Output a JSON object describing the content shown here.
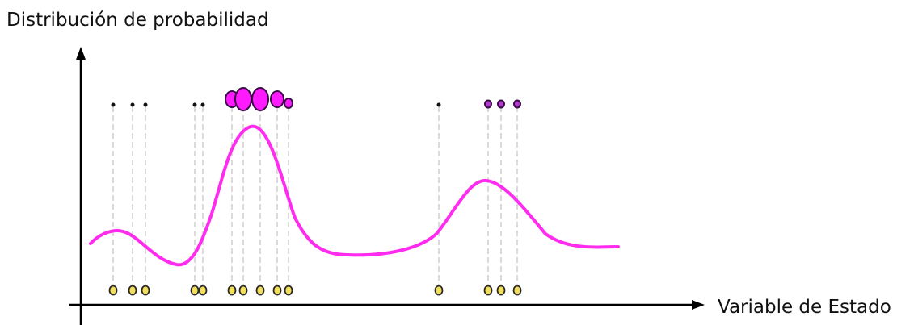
{
  "diagram": {
    "y_axis_label": "Distribución de probabilidad",
    "x_axis_label": "Variable de Estado",
    "colors": {
      "curve": "#ff2cf0",
      "particle_fill_weighted": "#ff1aff",
      "particle_stroke": "#3a0a44",
      "small_dot": "#111111",
      "sample_fill": "#f2df5b",
      "sample_stroke": "#2a2a2a",
      "guide_line": "#cfcfcf",
      "axis": "#000000"
    },
    "samples": [
      {
        "particle": "dot"
      },
      {
        "particle": "dot"
      },
      {
        "particle": "dot"
      },
      {
        "particle": "dot"
      },
      {
        "particle": "dot"
      },
      {
        "particle": "medium"
      },
      {
        "particle": "large"
      },
      {
        "particle": "large"
      },
      {
        "particle": "medium"
      },
      {
        "particle": "small"
      },
      {
        "particle": "dot"
      },
      {
        "particle": "tiny"
      },
      {
        "particle": "tiny"
      },
      {
        "particle": "tiny"
      }
    ]
  }
}
